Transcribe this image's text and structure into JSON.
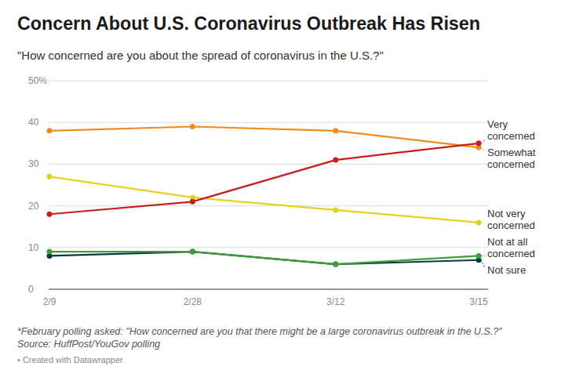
{
  "chart_data": {
    "type": "line",
    "title": "Concern About U.S. Coronavirus Outbreak Has Risen",
    "subtitle": "\"How concerned are you about the spread of coronavirus in the U.S.?\"",
    "notes": [
      "*February polling asked: \"How concerned are you that there might be a large coronavirus outbreak in the U.S.?\"",
      "Source: HuffPost/YouGov polling",
      "• Created with Datawrapper"
    ],
    "categories": [
      "2/9",
      "2/28",
      "3/12",
      "3/15"
    ],
    "series": [
      {
        "name": "Very concerned",
        "color": "#c71e1d",
        "values": [
          18,
          21,
          31,
          35
        ]
      },
      {
        "name": "Somewhat concerned",
        "color": "#f08c1e",
        "values": [
          38,
          39,
          38,
          34
        ]
      },
      {
        "name": "Not very concerned",
        "color": "#e5d21f",
        "values": [
          27,
          22,
          19,
          16
        ]
      },
      {
        "name": "Not at all concerned",
        "color": "#3e9f3a",
        "values": [
          9,
          9,
          6,
          8
        ]
      },
      {
        "name": "Not sure",
        "color": "#0d3945",
        "values": [
          8,
          9,
          6,
          7
        ]
      }
    ],
    "ylim": [
      0,
      50
    ],
    "yticks": [
      0,
      10,
      20,
      30,
      40,
      {
        "value": 50,
        "label": "50%"
      }
    ],
    "grid": true,
    "marker": "circle"
  }
}
